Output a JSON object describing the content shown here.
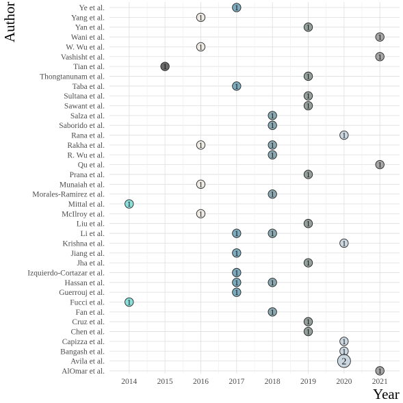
{
  "chart_data": {
    "type": "scatter",
    "xlabel": "Year",
    "ylabel": "Author",
    "x_ticks": [
      2014,
      2015,
      2016,
      2017,
      2018,
      2019,
      2020,
      2021
    ],
    "xlim": [
      2013.45,
      2021.55
    ],
    "y_categories": [
      "Ye et al.",
      "Yang et al.",
      "Yan et al.",
      "Wani et al.",
      "W. Wu et al.",
      "Vashisht et al.",
      "Tian et al.",
      "Thongtanunam et al.",
      "Taba et al.",
      "Sultana et al.",
      "Sawant et al.",
      "Salza et al.",
      "Saborido et al.",
      "Rana et al.",
      "Rakha et al.",
      "R. Wu et al.",
      "Qu et al.",
      "Prana et al.",
      "Munaiah et al.",
      "Morales-Ramirez et al.",
      "Mittal et al.",
      "McIlroy et al.",
      "Liu et al.",
      "Li et al.",
      "Krishna et al.",
      "Jiang et al.",
      "Jha et al.",
      "Izquierdo-Cortazar et al.",
      "Hassan et al.",
      "Guerrouj et al.",
      "Fucci et al.",
      "Fan et al.",
      "Cruz et al.",
      "Chen et al.",
      "Capizza et al.",
      "Bangash et al.",
      "Avila et al.",
      "AlOmar et al."
    ],
    "year_colors": {
      "2014": "#7fdcd6",
      "2015": "#595959",
      "2016": "#ebe8e1",
      "2017": "#6fa2b6",
      "2018": "#7e9ea9",
      "2019": "#8a9692",
      "2020": "#c4d3dd",
      "2021": "#9c9c9c"
    },
    "points": [
      {
        "author": "Ye et al.",
        "year": 2017,
        "count": 1
      },
      {
        "author": "Yang et al.",
        "year": 2016,
        "count": 1
      },
      {
        "author": "Yan et al.",
        "year": 2019,
        "count": 1
      },
      {
        "author": "Wani et al.",
        "year": 2021,
        "count": 1
      },
      {
        "author": "W. Wu et al.",
        "year": 2016,
        "count": 1
      },
      {
        "author": "Vashisht et al.",
        "year": 2021,
        "count": 1
      },
      {
        "author": "Tian et al.",
        "year": 2015,
        "count": 1
      },
      {
        "author": "Thongtanunam et al.",
        "year": 2019,
        "count": 1
      },
      {
        "author": "Taba et al.",
        "year": 2017,
        "count": 1
      },
      {
        "author": "Sultana et al.",
        "year": 2019,
        "count": 1
      },
      {
        "author": "Sawant et al.",
        "year": 2019,
        "count": 1
      },
      {
        "author": "Salza et al.",
        "year": 2018,
        "count": 1
      },
      {
        "author": "Saborido et al.",
        "year": 2018,
        "count": 1
      },
      {
        "author": "Rana et al.",
        "year": 2020,
        "count": 1
      },
      {
        "author": "Rakha et al.",
        "year": 2016,
        "count": 1
      },
      {
        "author": "Rakha et al.",
        "year": 2018,
        "count": 1
      },
      {
        "author": "R. Wu et al.",
        "year": 2018,
        "count": 1
      },
      {
        "author": "Qu et al.",
        "year": 2021,
        "count": 1
      },
      {
        "author": "Prana et al.",
        "year": 2019,
        "count": 1
      },
      {
        "author": "Munaiah et al.",
        "year": 2016,
        "count": 1
      },
      {
        "author": "Morales-Ramirez et al.",
        "year": 2018,
        "count": 1
      },
      {
        "author": "Mittal et al.",
        "year": 2014,
        "count": 1
      },
      {
        "author": "McIlroy et al.",
        "year": 2016,
        "count": 1
      },
      {
        "author": "Liu et al.",
        "year": 2019,
        "count": 1
      },
      {
        "author": "Li et al.",
        "year": 2017,
        "count": 1
      },
      {
        "author": "Li et al.",
        "year": 2018,
        "count": 1
      },
      {
        "author": "Krishna et al.",
        "year": 2020,
        "count": 1
      },
      {
        "author": "Jiang et al.",
        "year": 2017,
        "count": 1
      },
      {
        "author": "Jha et al.",
        "year": 2019,
        "count": 1
      },
      {
        "author": "Izquierdo-Cortazar et al.",
        "year": 2017,
        "count": 1
      },
      {
        "author": "Hassan et al.",
        "year": 2017,
        "count": 1
      },
      {
        "author": "Hassan et al.",
        "year": 2018,
        "count": 1
      },
      {
        "author": "Guerrouj et al.",
        "year": 2017,
        "count": 1
      },
      {
        "author": "Fucci et al.",
        "year": 2014,
        "count": 1
      },
      {
        "author": "Fan et al.",
        "year": 2018,
        "count": 1
      },
      {
        "author": "Cruz et al.",
        "year": 2019,
        "count": 1
      },
      {
        "author": "Chen et al.",
        "year": 2019,
        "count": 1
      },
      {
        "author": "Capizza et al.",
        "year": 2020,
        "count": 1
      },
      {
        "author": "Bangash et al.",
        "year": 2020,
        "count": 1
      },
      {
        "author": "Avila et al.",
        "year": 2020,
        "count": 2
      },
      {
        "author": "AlOmar et al.",
        "year": 2021,
        "count": 1
      }
    ],
    "grid": true,
    "legend": "none"
  }
}
